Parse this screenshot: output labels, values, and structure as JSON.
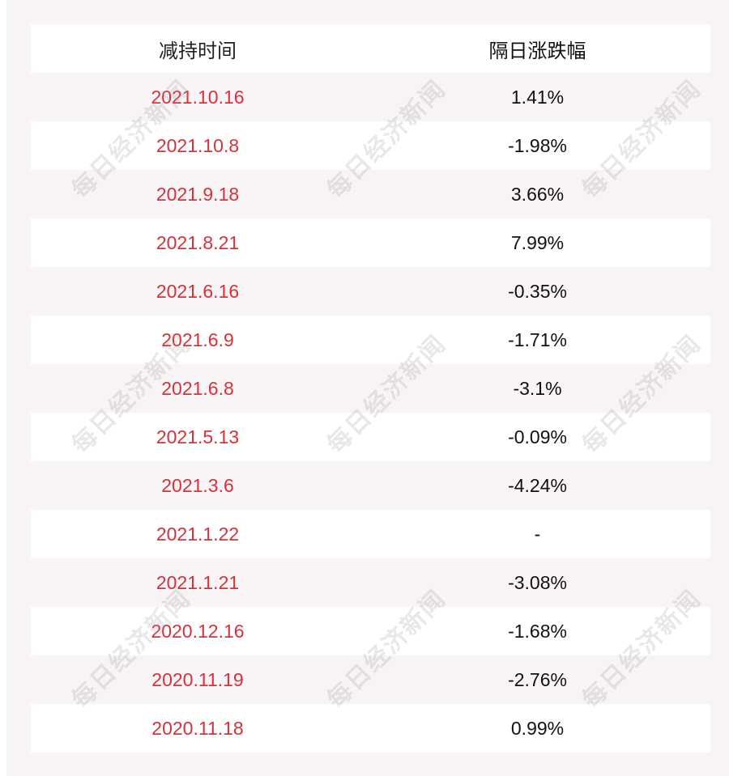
{
  "table": {
    "headers": [
      "减持时间",
      "隔日涨跌幅"
    ],
    "rows": [
      [
        "2021.10.16",
        "1.41%"
      ],
      [
        "2021.10.8",
        "-1.98%"
      ],
      [
        "2021.9.18",
        "3.66%"
      ],
      [
        "2021.8.21",
        "7.99%"
      ],
      [
        "2021.6.16",
        "-0.35%"
      ],
      [
        "2021.6.9",
        "-1.71%"
      ],
      [
        "2021.6.8",
        "-3.1%"
      ],
      [
        "2021.5.13",
        "-0.09%"
      ],
      [
        "2021.3.6",
        "-4.24%"
      ],
      [
        "2021.1.22",
        "-"
      ],
      [
        "2021.1.21",
        "-3.08%"
      ],
      [
        "2020.12.16",
        "-1.68%"
      ],
      [
        "2020.11.19",
        "-2.76%"
      ],
      [
        "2020.11.18",
        "0.99%"
      ]
    ]
  },
  "watermark": "每日经济新闻",
  "colors": {
    "date_text": "#d7313a",
    "background": "#f8f4f5",
    "stripe": "#ffffff"
  }
}
